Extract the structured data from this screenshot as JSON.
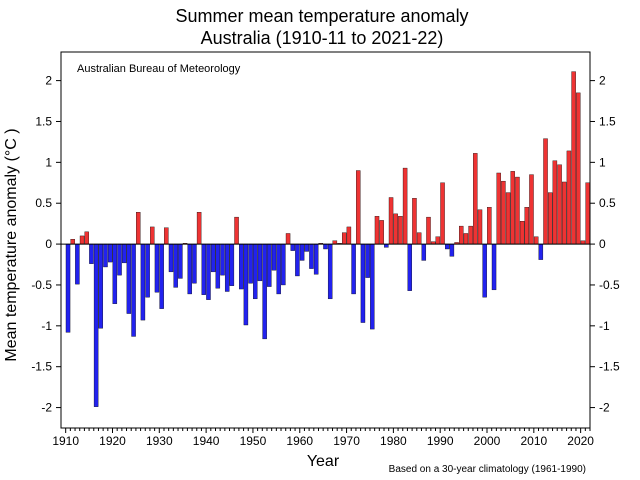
{
  "chart_data": {
    "type": "bar",
    "title": "Summer mean temperature anomaly",
    "subtitle": "Australia (1910-11 to 2021-22)",
    "xlabel": "Year",
    "ylabel": "Mean temperature anomaly (°C )",
    "source_note": "Australian Bureau of Meteorology",
    "baseline_note": "Based on a 30-year climatology (1961-1990)",
    "xlim": [
      1909,
      2022
    ],
    "ylim": [
      -2.25,
      2.35
    ],
    "x_ticks": [
      1910,
      1920,
      1930,
      1940,
      1950,
      1960,
      1970,
      1980,
      1990,
      2000,
      2010,
      2020
    ],
    "y_ticks": [
      -2,
      -1.5,
      -1,
      -0.5,
      0,
      0.5,
      1,
      1.5,
      2
    ],
    "positive_color": "#ee3333",
    "negative_color": "#2222ee",
    "x": [
      1910,
      1911,
      1912,
      1913,
      1914,
      1915,
      1916,
      1917,
      1918,
      1919,
      1920,
      1921,
      1922,
      1923,
      1924,
      1925,
      1926,
      1927,
      1928,
      1929,
      1930,
      1931,
      1932,
      1933,
      1934,
      1935,
      1936,
      1937,
      1938,
      1939,
      1940,
      1941,
      1942,
      1943,
      1944,
      1945,
      1946,
      1947,
      1948,
      1949,
      1950,
      1951,
      1952,
      1953,
      1954,
      1955,
      1956,
      1957,
      1958,
      1959,
      1960,
      1961,
      1962,
      1963,
      1964,
      1965,
      1966,
      1967,
      1968,
      1969,
      1970,
      1971,
      1972,
      1973,
      1974,
      1975,
      1976,
      1977,
      1978,
      1979,
      1980,
      1981,
      1982,
      1983,
      1984,
      1985,
      1986,
      1987,
      1988,
      1989,
      1990,
      1991,
      1992,
      1993,
      1994,
      1995,
      1996,
      1997,
      1998,
      1999,
      2000,
      2001,
      2002,
      2003,
      2004,
      2005,
      2006,
      2007,
      2008,
      2009,
      2010,
      2011,
      2012,
      2013,
      2014,
      2015,
      2016,
      2017,
      2018,
      2019,
      2020,
      2021
    ],
    "values": [
      -1.08,
      0.06,
      -0.49,
      0.1,
      0.15,
      -0.24,
      -1.99,
      -1.03,
      -0.28,
      -0.22,
      -0.73,
      -0.38,
      -0.23,
      -0.85,
      -1.13,
      0.39,
      -0.93,
      -0.65,
      0.21,
      -0.59,
      -0.79,
      0.2,
      -0.34,
      -0.53,
      -0.42,
      0.01,
      -0.61,
      -0.48,
      0.39,
      -0.62,
      -0.68,
      -0.34,
      -0.54,
      -0.38,
      -0.58,
      -0.51,
      0.33,
      -0.55,
      -0.99,
      -0.48,
      -0.67,
      -0.45,
      -1.16,
      -0.52,
      -0.32,
      -0.61,
      -0.5,
      0.13,
      -0.08,
      -0.39,
      -0.2,
      -0.09,
      -0.3,
      -0.37,
      0.01,
      -0.06,
      -0.67,
      0.04,
      0.01,
      0.14,
      0.21,
      -0.61,
      0.9,
      -0.96,
      -0.41,
      -1.04,
      0.34,
      0.29,
      -0.04,
      0.57,
      0.37,
      0.34,
      0.93,
      -0.57,
      0.56,
      0.14,
      -0.2,
      0.33,
      0.03,
      0.09,
      0.75,
      -0.06,
      -0.15,
      0.02,
      0.22,
      0.13,
      0.22,
      1.11,
      0.42,
      -0.65,
      0.45,
      -0.56,
      0.87,
      0.77,
      0.63,
      0.89,
      0.82,
      0.28,
      0.45,
      0.85,
      0.09,
      -0.19,
      1.29,
      0.63,
      1.02,
      0.97,
      0.76,
      1.14,
      2.11,
      1.85,
      0.04,
      0.75
    ]
  }
}
